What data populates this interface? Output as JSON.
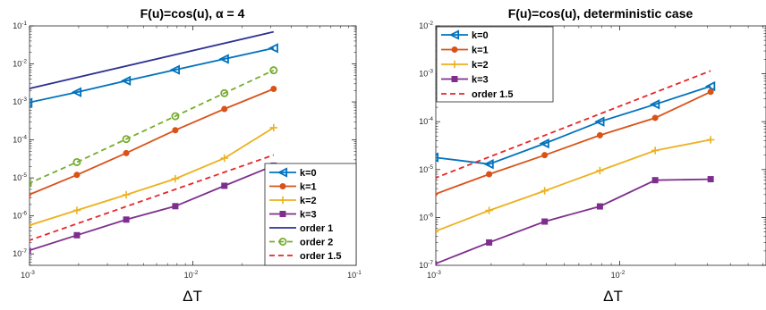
{
  "chart_data": [
    {
      "type": "line",
      "title": "F(u)=cos(u), α = 4",
      "xlabel": "ΔT",
      "ylabel": "",
      "xscale": "log",
      "yscale": "log",
      "xlim": [
        0.001,
        0.1
      ],
      "ylim": [
        5e-08,
        0.1
      ],
      "xticks": [
        0.001,
        0.01,
        0.1
      ],
      "xtick_labels": [
        {
          "base": "10",
          "exp": "-3"
        },
        {
          "base": "10",
          "exp": "-2"
        },
        {
          "base": "10",
          "exp": "-1"
        }
      ],
      "yticks": [
        1e-07,
        1e-06,
        1e-05,
        0.0001,
        0.001,
        0.01,
        0.1
      ],
      "ytick_labels": [
        {
          "base": "10",
          "exp": "-7"
        },
        {
          "base": "10",
          "exp": "-6"
        },
        {
          "base": "10",
          "exp": "-5"
        },
        {
          "base": "10",
          "exp": "-4"
        },
        {
          "base": "10",
          "exp": "-3"
        },
        {
          "base": "10",
          "exp": "-2"
        },
        {
          "base": "10",
          "exp": "-1"
        }
      ],
      "legend_position": "bottom-right",
      "grid": false,
      "series": [
        {
          "name": "k=0",
          "color": "#0072BD",
          "style": "solid",
          "marker": "triangle-left",
          "x": [
            0.000977,
            0.00195,
            0.00391,
            0.00781,
            0.0156,
            0.03125
          ],
          "y": [
            0.00095,
            0.0018,
            0.0036,
            0.007,
            0.0135,
            0.026
          ]
        },
        {
          "name": "k=1",
          "color": "#D95319",
          "style": "solid",
          "marker": "circle",
          "x": [
            0.000977,
            0.00195,
            0.00391,
            0.00781,
            0.0156,
            0.03125
          ],
          "y": [
            3.5e-06,
            1.2e-05,
            4.5e-05,
            0.00018,
            0.00065,
            0.0022
          ]
        },
        {
          "name": "k=2",
          "color": "#EDB120",
          "style": "solid",
          "marker": "plus",
          "x": [
            0.000977,
            0.00195,
            0.00391,
            0.00781,
            0.0156,
            0.03125
          ],
          "y": [
            5.5e-07,
            1.4e-06,
            3.6e-06,
            9.5e-06,
            3.3e-05,
            0.00021
          ]
        },
        {
          "name": "k=3",
          "color": "#7E2F8E",
          "style": "solid",
          "marker": "square",
          "x": [
            0.000977,
            0.00195,
            0.00391,
            0.00781,
            0.0156,
            0.03125
          ],
          "y": [
            1.2e-07,
            3.1e-07,
            8e-07,
            1.8e-06,
            6.2e-06,
            2.1e-05
          ]
        },
        {
          "name": "order 1",
          "color": "#2E3192",
          "style": "solid",
          "marker": "none",
          "x": [
            0.000977,
            0.03125
          ],
          "y": [
            0.0022,
            0.07
          ]
        },
        {
          "name": "order 2",
          "color": "#77AC30",
          "style": "dashed",
          "marker": "circle-open",
          "x": [
            0.000977,
            0.00195,
            0.00391,
            0.00781,
            0.0156,
            0.03125
          ],
          "y": [
            7e-06,
            2.6e-05,
            0.000105,
            0.00042,
            0.0017,
            0.0068
          ]
        },
        {
          "name": "order 1.5",
          "color": "#E8262B",
          "style": "dashed",
          "marker": "none",
          "x": [
            0.000977,
            0.03125
          ],
          "y": [
            2.2e-07,
            4e-05
          ]
        }
      ]
    },
    {
      "type": "line",
      "title": "F(u)=cos(u), deterministic case",
      "xlabel": "ΔT",
      "ylabel": "",
      "xscale": "log",
      "yscale": "log",
      "xlim": [
        0.001,
        0.0625
      ],
      "ylim": [
        1e-07,
        0.01
      ],
      "xticks": [
        0.001,
        0.01
      ],
      "xtick_labels": [
        {
          "base": "10",
          "exp": "-3"
        },
        {
          "base": "10",
          "exp": "-2"
        }
      ],
      "yticks": [
        1e-07,
        1e-06,
        1e-05,
        0.0001,
        0.001,
        0.01
      ],
      "ytick_labels": [
        {
          "base": "10",
          "exp": "-7"
        },
        {
          "base": "10",
          "exp": "-6"
        },
        {
          "base": "10",
          "exp": "-5"
        },
        {
          "base": "10",
          "exp": "-4"
        },
        {
          "base": "10",
          "exp": "-3"
        },
        {
          "base": "10",
          "exp": "-2"
        }
      ],
      "legend_position": "top-left",
      "grid": false,
      "series": [
        {
          "name": "k=0",
          "color": "#0072BD",
          "style": "solid",
          "marker": "triangle-left",
          "x": [
            0.000977,
            0.00195,
            0.00391,
            0.00781,
            0.0156,
            0.03125
          ],
          "y": [
            1.8e-05,
            1.3e-05,
            3.5e-05,
            0.0001,
            0.00023,
            0.00055
          ]
        },
        {
          "name": "k=1",
          "color": "#D95319",
          "style": "solid",
          "marker": "circle",
          "x": [
            0.000977,
            0.00195,
            0.00391,
            0.00781,
            0.0156,
            0.03125
          ],
          "y": [
            3e-06,
            8e-06,
            2e-05,
            5.2e-05,
            0.00012,
            0.00042
          ]
        },
        {
          "name": "k=2",
          "color": "#EDB120",
          "style": "solid",
          "marker": "plus",
          "x": [
            0.000977,
            0.00195,
            0.00391,
            0.00781,
            0.0156,
            0.03125
          ],
          "y": [
            5e-07,
            1.4e-06,
            3.6e-06,
            9.5e-06,
            2.5e-05,
            4.2e-05
          ]
        },
        {
          "name": "k=3",
          "color": "#7E2F8E",
          "style": "solid",
          "marker": "square",
          "x": [
            0.000977,
            0.00195,
            0.00391,
            0.00781,
            0.0156,
            0.03125
          ],
          "y": [
            1.05e-07,
            3e-07,
            8.2e-07,
            1.7e-06,
            6e-06,
            6.3e-06
          ]
        },
        {
          "name": "order 1.5",
          "color": "#E8262B",
          "style": "dashed",
          "marker": "none",
          "x": [
            0.000977,
            0.03125
          ],
          "y": [
            6.5e-06,
            0.00115
          ]
        }
      ]
    }
  ]
}
